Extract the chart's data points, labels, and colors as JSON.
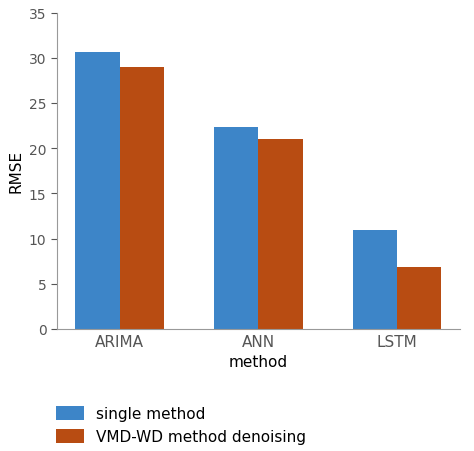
{
  "categories": [
    "ARIMA",
    "ANN",
    "LSTM"
  ],
  "single_method": [
    30.6,
    22.3,
    11.0
  ],
  "vmd_wd_method": [
    29.0,
    21.0,
    6.8
  ],
  "bar_color_single": "#3d85c8",
  "bar_color_vmd": "#b84c12",
  "xlabel": "method",
  "ylabel": "RMSE",
  "ylim": [
    0,
    35
  ],
  "yticks": [
    0,
    5,
    10,
    15,
    20,
    25,
    30,
    35
  ],
  "legend_labels": [
    "single method",
    "VMD-WD method denoising"
  ],
  "bar_width": 0.32,
  "background_color": "#ffffff",
  "spine_color": "#999999"
}
